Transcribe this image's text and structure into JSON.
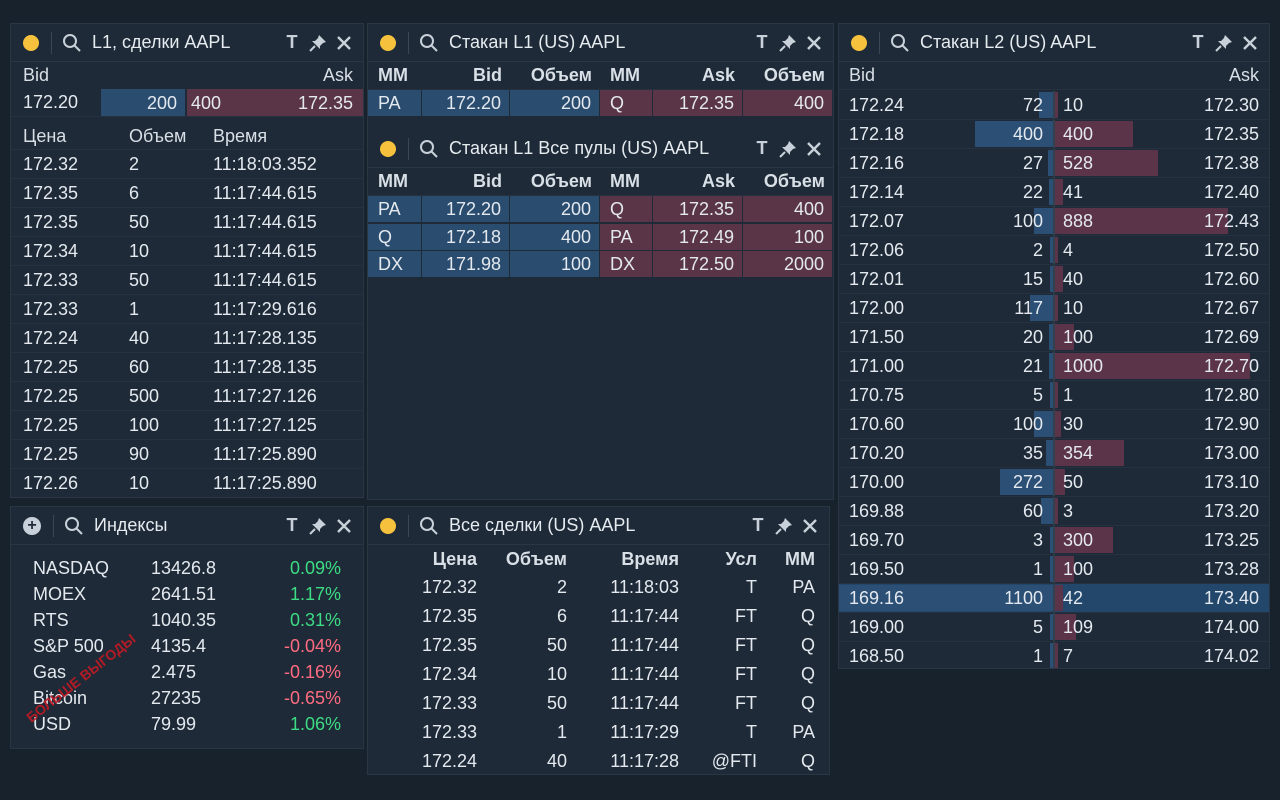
{
  "l1trades": {
    "title": "L1, сделки AAPL",
    "bid_label": "Bid",
    "ask_label": "Ask",
    "quote": {
      "bid_price": "172.20",
      "bid_size": "200",
      "ask_size": "400",
      "ask_price": "172.35"
    },
    "columns": [
      "Цена",
      "Объем",
      "Время"
    ],
    "rows": [
      [
        "172.32",
        "2",
        "11:18:03.352"
      ],
      [
        "172.35",
        "6",
        "11:17:44.615"
      ],
      [
        "172.35",
        "50",
        "11:17:44.615"
      ],
      [
        "172.34",
        "10",
        "11:17:44.615"
      ],
      [
        "172.33",
        "50",
        "11:17:44.615"
      ],
      [
        "172.33",
        "1",
        "11:17:29.616"
      ],
      [
        "172.24",
        "40",
        "11:17:28.135"
      ],
      [
        "172.25",
        "60",
        "11:17:28.135"
      ],
      [
        "172.25",
        "500",
        "11:17:27.126"
      ],
      [
        "172.25",
        "100",
        "11:17:27.125"
      ],
      [
        "172.25",
        "90",
        "11:17:25.890"
      ],
      [
        "172.26",
        "10",
        "11:17:25.890"
      ]
    ]
  },
  "book_l1": {
    "title": "Стакан L1 (US) AAPL",
    "columns": [
      "MM",
      "Bid",
      "Объем",
      "MM",
      "Ask",
      "Объем"
    ],
    "rows": [
      [
        "PA",
        "172.20",
        "200",
        "Q",
        "172.35",
        "400"
      ]
    ]
  },
  "book_l1_all": {
    "title": "Стакан L1 Все пулы (US) AAPL",
    "columns": [
      "MM",
      "Bid",
      "Объем",
      "MM",
      "Ask",
      "Объем"
    ],
    "rows": [
      [
        "PA",
        "172.20",
        "200",
        "Q",
        "172.35",
        "400"
      ],
      [
        "Q",
        "172.18",
        "400",
        "PA",
        "172.49",
        "100"
      ],
      [
        "DX",
        "171.98",
        "100",
        "DX",
        "172.50",
        "2000"
      ]
    ]
  },
  "book_l2": {
    "title": "Стакан L2 (US) AAPL",
    "bid_label": "Bid",
    "ask_label": "Ask",
    "rows": [
      {
        "bid": "172.24",
        "bsize": 72,
        "asize": 10,
        "ask": "172.30"
      },
      {
        "bid": "172.18",
        "bsize": 400,
        "asize": 400,
        "ask": "172.35"
      },
      {
        "bid": "172.16",
        "bsize": 27,
        "asize": 528,
        "ask": "172.38"
      },
      {
        "bid": "172.14",
        "bsize": 22,
        "asize": 41,
        "ask": "172.40"
      },
      {
        "bid": "172.07",
        "bsize": 100,
        "asize": 888,
        "ask": "172.43"
      },
      {
        "bid": "172.06",
        "bsize": 2,
        "asize": 4,
        "ask": "172.50"
      },
      {
        "bid": "172.01",
        "bsize": 15,
        "asize": 40,
        "ask": "172.60"
      },
      {
        "bid": "172.00",
        "bsize": 117,
        "asize": 10,
        "ask": "172.67"
      },
      {
        "bid": "171.50",
        "bsize": 20,
        "asize": 100,
        "ask": "172.69"
      },
      {
        "bid": "171.00",
        "bsize": 21,
        "asize": 1000,
        "ask": "172.70"
      },
      {
        "bid": "170.75",
        "bsize": 5,
        "asize": 1,
        "ask": "172.80"
      },
      {
        "bid": "170.60",
        "bsize": 100,
        "asize": 30,
        "ask": "172.90"
      },
      {
        "bid": "170.20",
        "bsize": 35,
        "asize": 354,
        "ask": "173.00"
      },
      {
        "bid": "170.00",
        "bsize": 272,
        "asize": 50,
        "ask": "173.10"
      },
      {
        "bid": "169.88",
        "bsize": 60,
        "asize": 3,
        "ask": "173.20"
      },
      {
        "bid": "169.70",
        "bsize": 3,
        "asize": 300,
        "ask": "173.25"
      },
      {
        "bid": "169.50",
        "bsize": 1,
        "asize": 100,
        "ask": "173.28"
      },
      {
        "bid": "169.16",
        "bsize": 1100,
        "asize": 42,
        "ask": "173.40"
      },
      {
        "bid": "169.00",
        "bsize": 5,
        "asize": 109,
        "ask": "174.00"
      },
      {
        "bid": "168.50",
        "bsize": 1,
        "asize": 7,
        "ask": "174.02"
      }
    ]
  },
  "indices": {
    "title": "Индексы",
    "rows": [
      [
        "NASDAQ",
        "13426.8",
        "0.09%",
        "up"
      ],
      [
        "MOEX",
        "2641.51",
        "1.17%",
        "up"
      ],
      [
        "RTS",
        "1040.35",
        "0.31%",
        "up"
      ],
      [
        "S&P 500",
        "4135.4",
        "-0.04%",
        "down"
      ],
      [
        "Gas",
        "2.475",
        "-0.16%",
        "down"
      ],
      [
        "Bitcoin",
        "27235",
        "-0.65%",
        "down"
      ],
      [
        "USD",
        "79.99",
        "1.06%",
        "up"
      ]
    ],
    "watermark": "БОЛЬШЕ ВЫГОДЫ"
  },
  "alltrades": {
    "title": "Все сделки (US) AAPL",
    "columns": [
      "Цена",
      "Объем",
      "Время",
      "Усл",
      "MM"
    ],
    "rows": [
      [
        "172.32",
        "2",
        "11:18:03",
        "T",
        "PA"
      ],
      [
        "172.35",
        "6",
        "11:17:44",
        "FT",
        "Q"
      ],
      [
        "172.35",
        "50",
        "11:17:44",
        "FT",
        "Q"
      ],
      [
        "172.34",
        "10",
        "11:17:44",
        "FT",
        "Q"
      ],
      [
        "172.33",
        "50",
        "11:17:44",
        "FT",
        "Q"
      ],
      [
        "172.33",
        "1",
        "11:17:29",
        "T",
        "PA"
      ],
      [
        "172.24",
        "40",
        "11:17:28",
        "@FTI",
        "Q"
      ]
    ]
  },
  "icons": {
    "pin": "pin-icon",
    "close": "close-icon",
    "search": "search-icon",
    "font": "T"
  },
  "colors": {
    "bid": "#2a4c6e",
    "ask": "#5a3547",
    "up": "#3ddc84",
    "down": "#ff6b81",
    "dot": "#f6c23e"
  }
}
